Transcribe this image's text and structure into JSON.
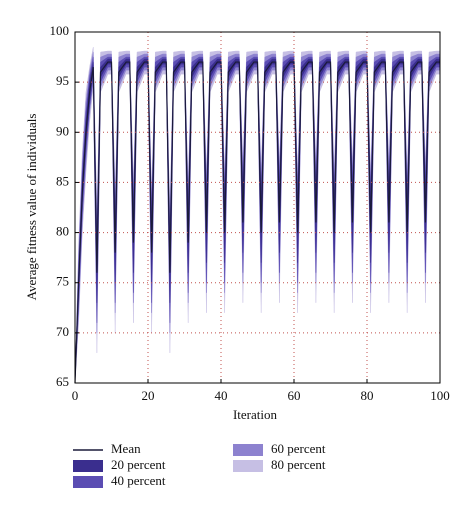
{
  "chart_data": {
    "type": "fan",
    "xlabel": "Iteration",
    "ylabel": "Average fitness value of individuals",
    "xlim": [
      0,
      100
    ],
    "ylim": [
      65,
      100
    ],
    "xticks": [
      0,
      20,
      40,
      60,
      80,
      100
    ],
    "yticks": [
      65,
      70,
      75,
      80,
      85,
      90,
      95,
      100
    ],
    "grid": true,
    "grid_color": "#c0504d",
    "x": [
      0,
      1,
      2,
      3,
      4,
      5,
      6,
      7,
      9,
      10,
      11,
      12,
      14,
      15,
      16,
      17,
      19,
      20,
      21,
      22,
      24,
      25,
      26,
      27,
      29,
      30,
      31,
      32,
      34,
      35,
      36,
      37,
      39,
      40,
      41,
      42,
      44,
      45,
      46,
      47,
      49,
      50,
      51,
      52,
      54,
      55,
      56,
      57,
      59,
      60,
      61,
      62,
      64,
      65,
      66,
      67,
      69,
      70,
      71,
      72,
      74,
      75,
      76,
      77,
      79,
      80,
      81,
      82,
      84,
      85,
      86,
      87,
      89,
      90,
      91,
      92,
      94,
      95,
      96,
      97,
      99,
      100
    ],
    "series": [
      {
        "name": "Mean",
        "color": "#1a1a3a",
        "values": [
          65,
          75,
          84,
          90,
          94,
          96.5,
          76,
          96,
          97,
          97,
          78,
          96,
          97,
          97,
          79,
          96,
          97,
          97,
          78,
          96,
          97,
          97,
          76,
          96,
          97,
          97,
          79,
          96,
          97,
          97,
          80,
          96,
          97,
          97,
          80,
          96,
          97,
          97,
          81,
          96,
          97,
          97,
          80,
          96,
          97,
          97,
          81,
          96,
          97,
          97,
          80,
          96,
          97,
          97,
          81,
          96,
          97,
          97,
          80,
          96,
          97,
          97,
          81,
          96,
          97,
          97,
          80,
          96,
          97,
          97,
          81,
          96,
          97,
          97,
          80,
          96,
          97,
          97,
          81,
          96,
          97,
          97
        ]
      },
      {
        "name": "80 percent",
        "color": "#c6bfe4",
        "lower": [
          65,
          71,
          80,
          86,
          91,
          94.5,
          68,
          94,
          95.8,
          95.8,
          70,
          94,
          95.8,
          95.8,
          71,
          94,
          95.8,
          95.8,
          70,
          94,
          95.8,
          95.8,
          68,
          94,
          95.8,
          95.8,
          71,
          94,
          95.8,
          95.8,
          72,
          94,
          95.8,
          95.8,
          72,
          94,
          95.8,
          95.8,
          73,
          94,
          95.8,
          95.8,
          72,
          94,
          95.8,
          95.8,
          73,
          94,
          95.8,
          95.8,
          72,
          94,
          95.8,
          95.8,
          73,
          94,
          95.8,
          95.8,
          72,
          94,
          95.8,
          95.8,
          73,
          94,
          95.8,
          95.8,
          72,
          94,
          95.8,
          95.8,
          73,
          94,
          95.8,
          95.8,
          72,
          94,
          95.8,
          95.8,
          73,
          94,
          95.8,
          95.8
        ],
        "upper": [
          65,
          79,
          88,
          94,
          96.5,
          98.5,
          82,
          98,
          98.1,
          98.1,
          84,
          98,
          98.1,
          98.1,
          85,
          98,
          98.1,
          98.1,
          84,
          98,
          98.1,
          98.1,
          82,
          98,
          98.1,
          98.1,
          85,
          98,
          98.1,
          98.1,
          86,
          98,
          98.1,
          98.1,
          86,
          98,
          98.1,
          98.1,
          87,
          98,
          98.1,
          98.1,
          86,
          98,
          98.1,
          98.1,
          87,
          98,
          98.1,
          98.1,
          86,
          98,
          98.1,
          98.1,
          87,
          98,
          98.1,
          98.1,
          86,
          98,
          98.1,
          98.1,
          87,
          98,
          98.1,
          98.1,
          86,
          98,
          98.1,
          98.1,
          87,
          98,
          98.1,
          98.1,
          86,
          98,
          98.1,
          98.1,
          87,
          98,
          98.1,
          98.1
        ]
      },
      {
        "name": "60 percent",
        "color": "#8d82cf",
        "lower": [
          65,
          72,
          81,
          87,
          92,
          95,
          70,
          94.5,
          96.2,
          96.2,
          72,
          94.5,
          96.2,
          96.2,
          73,
          94.5,
          96.2,
          96.2,
          72,
          94.5,
          96.2,
          96.2,
          70,
          94.5,
          96.2,
          96.2,
          73,
          94.5,
          96.2,
          96.2,
          74,
          94.5,
          96.2,
          96.2,
          74,
          94.5,
          96.2,
          96.2,
          75,
          94.5,
          96.2,
          96.2,
          74,
          94.5,
          96.2,
          96.2,
          75,
          94.5,
          96.2,
          96.2,
          74,
          94.5,
          96.2,
          96.2,
          75,
          94.5,
          96.2,
          96.2,
          74,
          94.5,
          96.2,
          96.2,
          75,
          94.5,
          96.2,
          96.2,
          74,
          94.5,
          96.2,
          96.2,
          75,
          94.5,
          96.2,
          96.2,
          74,
          94.5,
          96.2,
          96.2,
          75,
          94.5,
          96.2,
          96.2
        ],
        "upper": [
          65,
          78,
          87,
          93,
          96,
          98,
          81,
          97.5,
          97.8,
          97.8,
          83,
          97.5,
          97.8,
          97.8,
          84,
          97.5,
          97.8,
          97.8,
          83,
          97.5,
          97.8,
          97.8,
          81,
          97.5,
          97.8,
          97.8,
          84,
          97.5,
          97.8,
          97.8,
          85,
          97.5,
          97.8,
          97.8,
          85,
          97.5,
          97.8,
          97.8,
          86,
          97.5,
          97.8,
          97.8,
          85,
          97.5,
          97.8,
          97.8,
          86,
          97.5,
          97.8,
          97.8,
          85,
          97.5,
          97.8,
          97.8,
          86,
          97.5,
          97.8,
          97.8,
          85,
          97.5,
          97.8,
          97.8,
          86,
          97.5,
          97.8,
          97.8,
          85,
          97.5,
          97.8,
          97.8,
          86,
          97.5,
          97.8,
          97.8,
          85,
          97.5,
          97.8,
          97.8,
          86,
          97.5,
          97.8,
          97.8
        ]
      },
      {
        "name": "40 percent",
        "color": "#5b4db3",
        "lower": [
          65,
          73,
          82,
          88,
          92.5,
          95.5,
          71,
          95,
          96.5,
          96.5,
          73,
          95,
          96.5,
          96.5,
          74,
          95,
          96.5,
          96.5,
          73,
          95,
          96.5,
          96.5,
          71,
          95,
          96.5,
          96.5,
          74,
          95,
          96.5,
          96.5,
          75,
          95,
          96.5,
          96.5,
          75,
          95,
          96.5,
          96.5,
          76,
          95,
          96.5,
          96.5,
          75,
          95,
          96.5,
          96.5,
          76,
          95,
          96.5,
          96.5,
          75,
          95,
          96.5,
          96.5,
          76,
          95,
          96.5,
          96.5,
          75,
          95,
          96.5,
          96.5,
          76,
          95,
          96.5,
          96.5,
          75,
          95,
          96.5,
          96.5,
          76,
          95,
          96.5,
          96.5,
          75,
          95,
          96.5,
          96.5,
          76,
          95,
          96.5,
          96.5
        ],
        "upper": [
          65,
          77,
          86,
          92,
          95.5,
          97.5,
          80,
          97,
          97.5,
          97.5,
          82,
          97,
          97.5,
          97.5,
          83,
          97,
          97.5,
          97.5,
          82,
          97,
          97.5,
          97.5,
          80,
          97,
          97.5,
          97.5,
          83,
          97,
          97.5,
          97.5,
          84,
          97,
          97.5,
          97.5,
          84,
          97,
          97.5,
          97.5,
          85,
          97,
          97.5,
          97.5,
          84,
          97,
          97.5,
          97.5,
          85,
          97,
          97.5,
          97.5,
          84,
          97,
          97.5,
          97.5,
          85,
          97,
          97.5,
          97.5,
          84,
          97,
          97.5,
          97.5,
          85,
          97,
          97.5,
          97.5,
          84,
          97,
          97.5,
          97.5,
          85,
          97,
          97.5,
          97.5,
          84,
          97,
          97.5,
          97.5,
          85,
          97,
          97.5,
          97.5
        ]
      },
      {
        "name": "20 percent",
        "color": "#3a2e8e",
        "lower": [
          65,
          74,
          83,
          89,
          93,
          96,
          73,
          95.5,
          96.8,
          96.8,
          75,
          95.5,
          96.8,
          96.8,
          76,
          95.5,
          96.8,
          96.8,
          75,
          95.5,
          96.8,
          96.8,
          73,
          95.5,
          96.8,
          96.8,
          76,
          95.5,
          96.8,
          96.8,
          77,
          95.5,
          96.8,
          96.8,
          77,
          95.5,
          96.8,
          96.8,
          78,
          95.5,
          96.8,
          96.8,
          77,
          95.5,
          96.8,
          96.8,
          78,
          95.5,
          96.8,
          96.8,
          77,
          95.5,
          96.8,
          96.8,
          78,
          95.5,
          96.8,
          96.8,
          77,
          95.5,
          96.8,
          96.8,
          78,
          95.5,
          96.8,
          96.8,
          77,
          95.5,
          96.8,
          96.8,
          78,
          95.5,
          96.8,
          96.8,
          77,
          95.5,
          96.8,
          96.8,
          78,
          95.5,
          96.8,
          96.8
        ],
        "upper": [
          65,
          76,
          85,
          91,
          95,
          97,
          79,
          96.5,
          97.3,
          97.3,
          81,
          96.5,
          97.3,
          97.3,
          82,
          96.5,
          97.3,
          97.3,
          81,
          96.5,
          97.3,
          97.3,
          79,
          96.5,
          97.3,
          97.3,
          82,
          96.5,
          97.3,
          97.3,
          83,
          96.5,
          97.3,
          97.3,
          83,
          96.5,
          97.3,
          97.3,
          84,
          96.5,
          97.3,
          97.3,
          83,
          96.5,
          97.3,
          97.3,
          84,
          96.5,
          97.3,
          97.3,
          83,
          96.5,
          97.3,
          97.3,
          84,
          96.5,
          97.3,
          97.3,
          83,
          96.5,
          97.3,
          97.3,
          84,
          96.5,
          97.3,
          97.3,
          83,
          96.5,
          97.3,
          97.3,
          84,
          96.5,
          97.3,
          97.3,
          83,
          96.5,
          97.3,
          97.3,
          84,
          96.5,
          97.3,
          97.3
        ]
      }
    ]
  }
}
